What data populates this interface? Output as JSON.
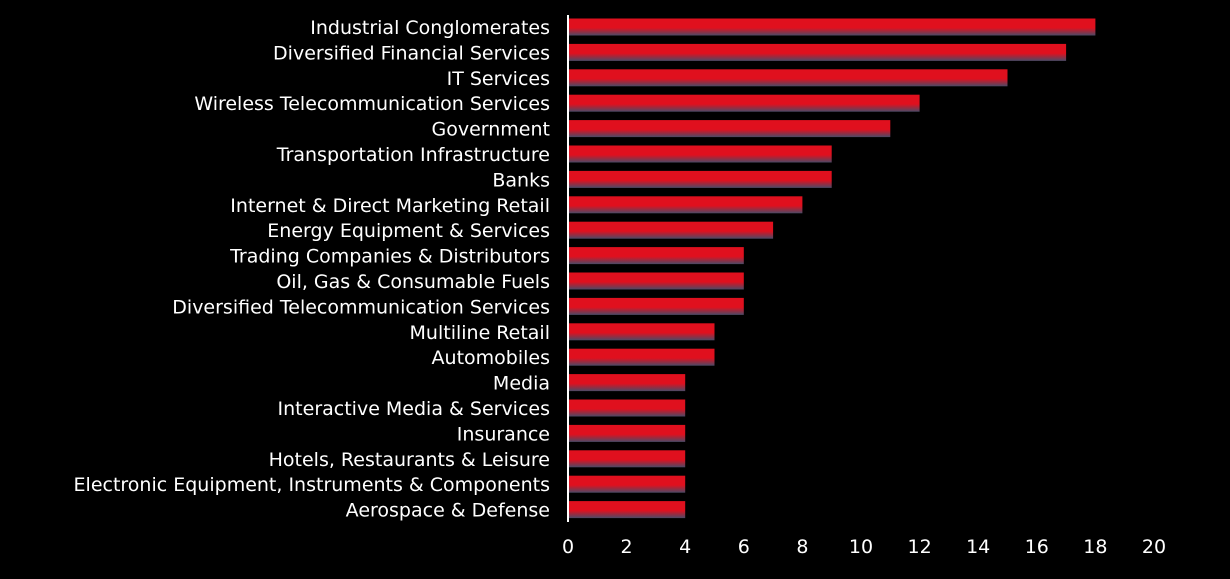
{
  "chart_data": {
    "type": "bar",
    "orientation": "horizontal",
    "categories": [
      "Industrial Conglomerates",
      "Diversified Financial Services",
      "IT Services",
      "Wireless Telecommunication Services",
      "Government",
      "Transportation Infrastructure",
      "Banks",
      "Internet & Direct Marketing Retail",
      "Energy Equipment & Services",
      "Trading Companies & Distributors",
      "Oil, Gas & Consumable Fuels",
      "Diversified Telecommunication Services",
      "Multiline Retail",
      "Automobiles",
      "Media",
      "Interactive Media & Services",
      "Insurance",
      "Hotels, Restaurants & Leisure",
      "Electronic Equipment, Instruments & Components",
      "Aerospace & Defense"
    ],
    "values": [
      18,
      17,
      15,
      12,
      11,
      9,
      9,
      8,
      7,
      6,
      6,
      6,
      5,
      5,
      4,
      4,
      4,
      4,
      4,
      4
    ],
    "xlim": [
      0,
      20
    ],
    "xticks": [
      "0",
      "2",
      "4",
      "6",
      "8",
      "10",
      "12",
      "14",
      "16",
      "18",
      "20"
    ],
    "title": "",
    "xlabel": "",
    "ylabel": "",
    "grid": false,
    "legend": "none",
    "colors": {
      "background": "#000000",
      "bar_top": "#e0101e",
      "bar_bottom": "#4a4a66",
      "axis": "#ffffff",
      "text": "#ffffff"
    }
  }
}
